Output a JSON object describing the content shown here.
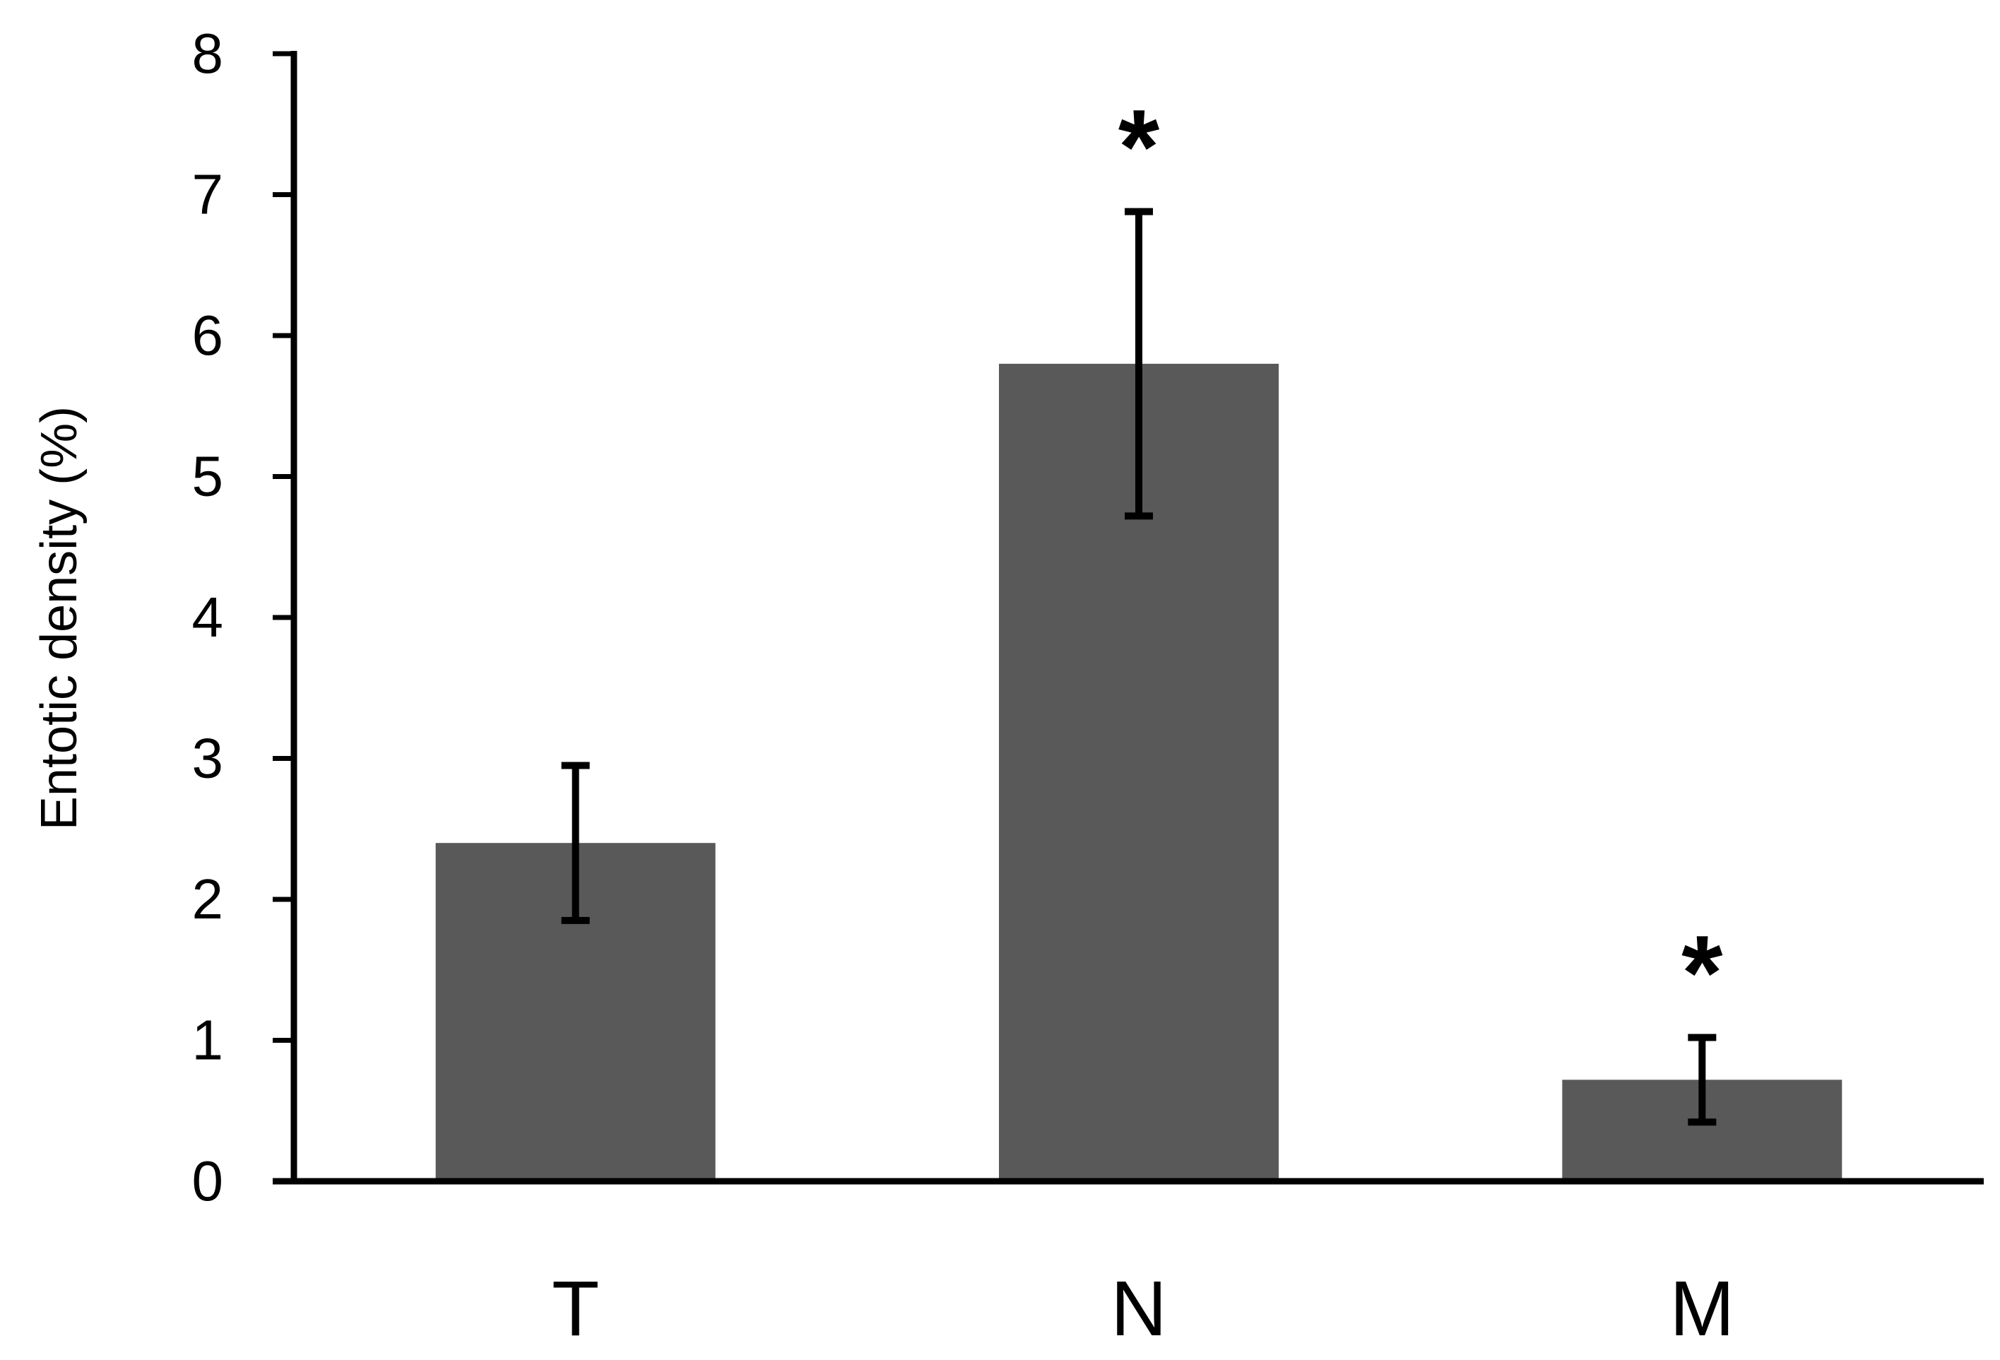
{
  "chart_data": {
    "type": "bar",
    "title": "",
    "xlabel": "",
    "ylabel": "Entotic density (%)",
    "ylim": [
      0,
      8
    ],
    "yticks": [
      0,
      1,
      2,
      3,
      4,
      5,
      6,
      7,
      8
    ],
    "categories": [
      "T",
      "N",
      "M"
    ],
    "values": [
      2.4,
      5.8,
      0.72
    ],
    "errors": [
      0.55,
      1.08,
      0.3
    ],
    "significance": [
      "",
      "*",
      "*"
    ],
    "grid": false,
    "legend": "none",
    "bar_color": "#595959",
    "axis_color": "#000000",
    "error_color": "#000000"
  }
}
